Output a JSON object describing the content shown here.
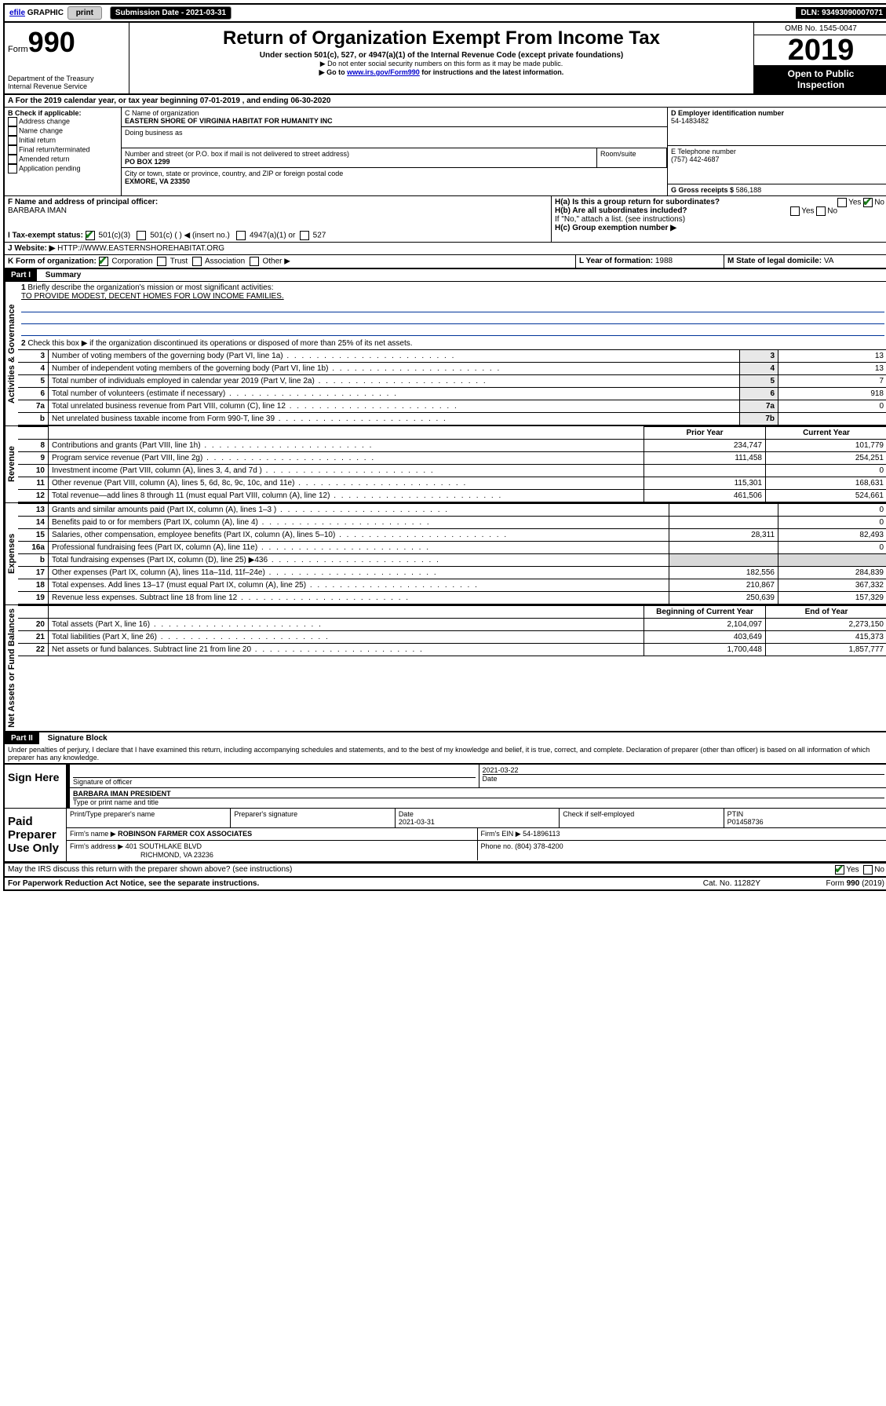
{
  "topbar": {
    "efile": "efile",
    "graphic": "GRAPHIC",
    "print": "print",
    "submission_label": "Submission Date - 2021-03-31",
    "dln": "DLN: 93493090007071"
  },
  "header": {
    "form_label": "Form",
    "form_number": "990",
    "dept1": "Department of the Treasury",
    "dept2": "Internal Revenue Service",
    "title": "Return of Organization Exempt From Income Tax",
    "subtitle": "Under section 501(c), 527, or 4947(a)(1) of the Internal Revenue Code (except private foundations)",
    "note1": "▶ Do not enter social security numbers on this form as it may be made public.",
    "note2_pre": "▶ Go to ",
    "note2_link": "www.irs.gov/Form990",
    "note2_post": " for instructions and the latest information.",
    "omb": "OMB No. 1545-0047",
    "year": "2019",
    "open_public1": "Open to Public",
    "open_public2": "Inspection"
  },
  "period": {
    "line": "A For the 2019 calendar year, or tax year beginning 07-01-2019    , and ending 06-30-2020"
  },
  "boxB": {
    "label": "B Check if applicable:",
    "opts": [
      "Address change",
      "Name change",
      "Initial return",
      "Final return/terminated",
      "Amended return",
      "Application pending"
    ]
  },
  "boxC": {
    "name_label": "C Name of organization",
    "name": "EASTERN SHORE OF VIRGINIA HABITAT FOR HUMANITY INC",
    "dba_label": "Doing business as",
    "addr_label": "Number and street (or P.O. box if mail is not delivered to street address)",
    "room_label": "Room/suite",
    "addr": "PO BOX 1299",
    "city_label": "City or town, state or province, country, and ZIP or foreign postal code",
    "city": "EXMORE, VA  23350"
  },
  "boxD": {
    "label": "D Employer identification number",
    "value": "54-1483482"
  },
  "boxE": {
    "label": "E Telephone number",
    "value": "(757) 442-4687"
  },
  "boxG": {
    "label": "G Gross receipts $",
    "value": "586,188"
  },
  "boxF": {
    "label": "F  Name and address of principal officer:",
    "value": "BARBARA IMAN"
  },
  "boxH": {
    "a_label": "H(a)  Is this a group return for subordinates?",
    "b_label": "H(b)  Are all subordinates included?",
    "b_note": "If \"No,\" attach a list. (see instructions)",
    "c_label": "H(c)  Group exemption number ▶",
    "yes": "Yes",
    "no": "No"
  },
  "boxI": {
    "label": "I     Tax-exempt status:",
    "o1": "501(c)(3)",
    "o2": "501(c) (   ) ◀ (insert no.)",
    "o3": "4947(a)(1) or",
    "o4": "527"
  },
  "boxJ": {
    "label": "J     Website: ▶",
    "value": "HTTP://WWW.EASTERNSHOREHABITAT.ORG"
  },
  "boxK": {
    "label": "K Form of organization:",
    "o1": "Corporation",
    "o2": "Trust",
    "o3": "Association",
    "o4": "Other ▶"
  },
  "boxL": {
    "label": "L Year of formation:",
    "value": "1988"
  },
  "boxM": {
    "label": "M State of legal domicile:",
    "value": "VA"
  },
  "partI": {
    "label": "Part I",
    "title": "Summary",
    "side_gov": "Activities & Governance",
    "side_rev": "Revenue",
    "side_exp": "Expenses",
    "side_net": "Net Assets or Fund Balances",
    "q1": "Briefly describe the organization's mission or most significant activities:",
    "q1_ans": "TO PROVIDE MODEST, DECENT HOMES FOR LOW INCOME FAMILIES.",
    "q2": "Check this box ▶       if the organization discontinued its operations or disposed of more than 25% of its net assets.",
    "lines_gov": [
      {
        "n": "3",
        "t": "Number of voting members of the governing body (Part VI, line 1a)",
        "c": "3",
        "v": "13"
      },
      {
        "n": "4",
        "t": "Number of independent voting members of the governing body (Part VI, line 1b)",
        "c": "4",
        "v": "13"
      },
      {
        "n": "5",
        "t": "Total number of individuals employed in calendar year 2019 (Part V, line 2a)",
        "c": "5",
        "v": "7"
      },
      {
        "n": "6",
        "t": "Total number of volunteers (estimate if necessary)",
        "c": "6",
        "v": "918"
      },
      {
        "n": "7a",
        "t": "Total unrelated business revenue from Part VIII, column (C), line 12",
        "c": "7a",
        "v": "0"
      },
      {
        "n": " b",
        "t": "Net unrelated business taxable income from Form 990-T, line 39",
        "c": "7b",
        "v": ""
      }
    ],
    "col_prior": "Prior Year",
    "col_current": "Current Year",
    "col_boy": "Beginning of Current Year",
    "col_eoy": "End of Year",
    "lines_rev": [
      {
        "n": "8",
        "t": "Contributions and grants (Part VIII, line 1h)",
        "p": "234,747",
        "c": "101,779"
      },
      {
        "n": "9",
        "t": "Program service revenue (Part VIII, line 2g)",
        "p": "111,458",
        "c": "254,251"
      },
      {
        "n": "10",
        "t": "Investment income (Part VIII, column (A), lines 3, 4, and 7d )",
        "p": "",
        "c": "0"
      },
      {
        "n": "11",
        "t": "Other revenue (Part VIII, column (A), lines 5, 6d, 8c, 9c, 10c, and 11e)",
        "p": "115,301",
        "c": "168,631"
      },
      {
        "n": "12",
        "t": "Total revenue—add lines 8 through 11 (must equal Part VIII, column (A), line 12)",
        "p": "461,506",
        "c": "524,661"
      }
    ],
    "lines_exp": [
      {
        "n": "13",
        "t": "Grants and similar amounts paid (Part IX, column (A), lines 1–3 )",
        "p": "",
        "c": "0"
      },
      {
        "n": "14",
        "t": "Benefits paid to or for members (Part IX, column (A), line 4)",
        "p": "",
        "c": "0"
      },
      {
        "n": "15",
        "t": "Salaries, other compensation, employee benefits (Part IX, column (A), lines 5–10)",
        "p": "28,311",
        "c": "82,493"
      },
      {
        "n": "16a",
        "t": "Professional fundraising fees (Part IX, column (A), line 11e)",
        "p": "",
        "c": "0"
      },
      {
        "n": "b",
        "t": "Total fundraising expenses (Part IX, column (D), line 25) ▶436",
        "p": "GRAY",
        "c": "GRAY"
      },
      {
        "n": "17",
        "t": "Other expenses (Part IX, column (A), lines 11a–11d, 11f–24e)",
        "p": "182,556",
        "c": "284,839"
      },
      {
        "n": "18",
        "t": "Total expenses. Add lines 13–17 (must equal Part IX, column (A), line 25)",
        "p": "210,867",
        "c": "367,332"
      },
      {
        "n": "19",
        "t": "Revenue less expenses. Subtract line 18 from line 12",
        "p": "250,639",
        "c": "157,329"
      }
    ],
    "lines_net": [
      {
        "n": "20",
        "t": "Total assets (Part X, line 16)",
        "p": "2,104,097",
        "c": "2,273,150"
      },
      {
        "n": "21",
        "t": "Total liabilities (Part X, line 26)",
        "p": "403,649",
        "c": "415,373"
      },
      {
        "n": "22",
        "t": "Net assets or fund balances. Subtract line 21 from line 20",
        "p": "1,700,448",
        "c": "1,857,777"
      }
    ]
  },
  "partII": {
    "label": "Part II",
    "title": "Signature Block",
    "declaration": "Under penalties of perjury, I declare that I have examined this return, including accompanying schedules and statements, and to the best of my knowledge and belief, it is true, correct, and complete. Declaration of preparer (other than officer) is based on all information of which preparer has any knowledge.",
    "sign_here": "Sign Here",
    "sig_officer": "Signature of officer",
    "date_label": "Date",
    "date_val": "2021-03-22",
    "name_title": "BARBARA IMAN  PRESIDENT",
    "name_label": "Type or print name and title",
    "paid": "Paid Preparer Use Only",
    "prep_name_label": "Print/Type preparer's name",
    "prep_sig_label": "Preparer's signature",
    "prep_date": "2021-03-31",
    "check_self": "Check         if self-employed",
    "ptin_label": "PTIN",
    "ptin": "P01458736",
    "firm_name_label": "Firm's name      ▶",
    "firm_name": "ROBINSON FARMER COX ASSOCIATES",
    "firm_ein_label": "Firm's EIN ▶",
    "firm_ein": "54-1896113",
    "firm_addr_label": "Firm's address ▶",
    "firm_addr1": "401 SOUTHLAKE BLVD",
    "firm_addr2": "RICHMOND, VA  23236",
    "phone_label": "Phone no.",
    "phone": "(804) 378-4200",
    "discuss": "May the IRS discuss this return with the preparer shown above? (see instructions)",
    "yes": "Yes",
    "no": "No"
  },
  "footer": {
    "paperwork": "For Paperwork Reduction Act Notice, see the separate instructions.",
    "cat": "Cat. No. 11282Y",
    "form": "Form 990 (2019)"
  }
}
